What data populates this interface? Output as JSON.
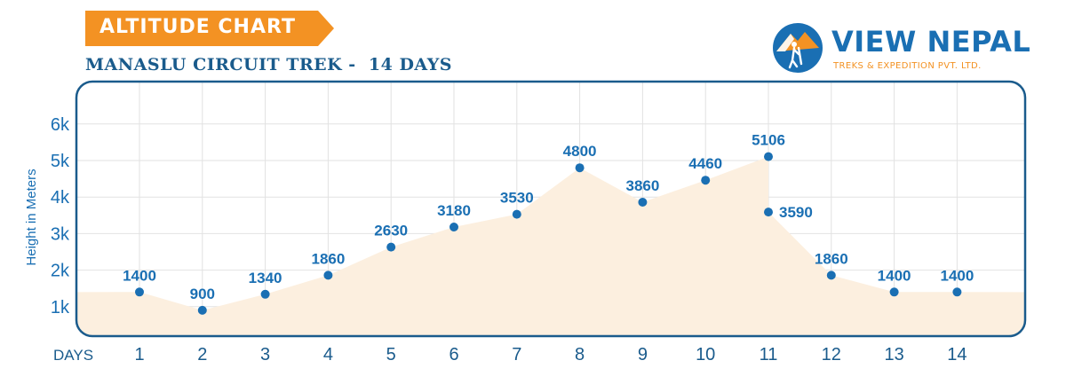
{
  "header": {
    "banner_title": "ALTITUDE CHART",
    "subtitle": "MANASLU CIRCUIT TREK -  14 DAYS"
  },
  "logo": {
    "name": "VIEW NEPAL",
    "tagline": "TREKS & EXPEDITION PVT. LTD.",
    "colors": {
      "blue": "#1a6fb3",
      "orange": "#f39223"
    }
  },
  "colors": {
    "banner": "#f39223",
    "primary": "#1a6fb3",
    "frame": "#1a5b8c",
    "area_fill": "#fcefdf",
    "grid": "#e2e2e2"
  },
  "chart_data": {
    "type": "area",
    "ylabel": "Height in Meters",
    "xlabel": "DAYS",
    "x": [
      1,
      2,
      3,
      4,
      5,
      6,
      7,
      8,
      9,
      10,
      11,
      11,
      12,
      13,
      14
    ],
    "values": [
      1400,
      900,
      1340,
      1860,
      2630,
      3180,
      3530,
      4800,
      3860,
      4460,
      5106,
      3590,
      1860,
      1400,
      1400
    ],
    "point_labels": [
      "1400",
      "900",
      "1340",
      "1860",
      "2630",
      "3180",
      "3530",
      "4800",
      "3860",
      "4460",
      "5106",
      "3590",
      "1860",
      "1400",
      "1400"
    ],
    "x_ticks": [
      "1",
      "2",
      "3",
      "4",
      "5",
      "6",
      "7",
      "8",
      "9",
      "10",
      "11",
      "12",
      "13",
      "14"
    ],
    "y_ticks": [
      "1k",
      "2k",
      "3k",
      "4k",
      "5k",
      "6k"
    ],
    "y_tick_values": [
      1000,
      2000,
      3000,
      4000,
      5000,
      6000
    ],
    "ylim": [
      0,
      7000
    ],
    "grid": true
  }
}
